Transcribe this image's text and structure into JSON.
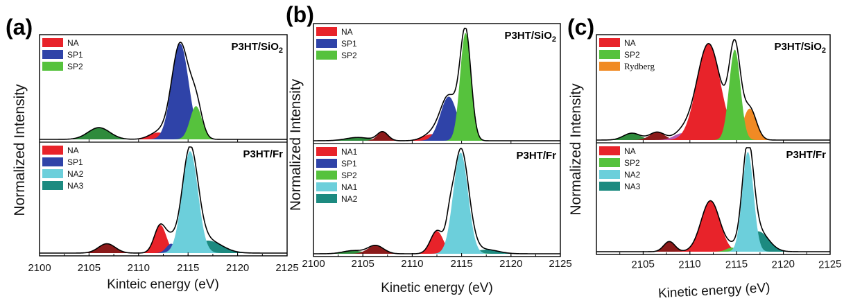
{
  "colors": {
    "NA": "#e8232a",
    "NA1": "#e8232a",
    "SP1": "#2f43a8",
    "SP2": "#56c23d",
    "NA2": "#6ccfdb",
    "NA3": "#1c8a80",
    "NA2_b": "#1c8a80",
    "Rydberg": "#f08a24",
    "darkred": "#8b1a1a",
    "darkgreen": "#2e8b3c",
    "purple": "#b45bb3"
  },
  "chart_data": [
    {
      "panel": "(a)",
      "type": "area",
      "xlabel": "Kinteic energy (eV)",
      "ylabel": "Normalized Intensity",
      "xlim": [
        2100,
        2125
      ],
      "xticks": [
        "2100",
        "2105",
        "2110",
        "2115",
        "2120",
        "2125"
      ],
      "subplots": [
        {
          "sample": "P3HT/SiO",
          "sample_sub": "2",
          "legend": [
            {
              "label": "NA",
              "color_key": "NA"
            },
            {
              "label": "SP1",
              "color_key": "SP1"
            },
            {
              "label": "SP2",
              "color_key": "SP2"
            }
          ],
          "components": [
            {
              "color_key": "darkgreen",
              "center": 2106.0,
              "sigma": 1.1,
              "amp": 0.12
            },
            {
              "color_key": "NA",
              "center": 2112.0,
              "sigma": 0.9,
              "amp": 0.07
            },
            {
              "color_key": "SP1",
              "center": 2114.2,
              "sigma": 0.85,
              "amp": 0.98
            },
            {
              "color_key": "SP2",
              "center": 2115.8,
              "sigma": 0.6,
              "amp": 0.34
            }
          ]
        },
        {
          "sample": "P3HT/Fr",
          "sample_sub": "",
          "legend": [
            {
              "label": "NA",
              "color_key": "NA"
            },
            {
              "label": "SP1",
              "color_key": "SP1"
            },
            {
              "label": "NA2",
              "color_key": "NA2"
            },
            {
              "label": "NA3",
              "color_key": "NA3"
            }
          ],
          "components": [
            {
              "color_key": "darkred",
              "center": 2106.8,
              "sigma": 0.85,
              "amp": 0.09
            },
            {
              "color_key": "NA",
              "center": 2112.2,
              "sigma": 0.6,
              "amp": 0.27
            },
            {
              "color_key": "SP1",
              "center": 2113.3,
              "sigma": 0.5,
              "amp": 0.09
            },
            {
              "color_key": "NA3",
              "center": 2117.0,
              "sigma": 1.4,
              "amp": 0.12
            },
            {
              "color_key": "NA2",
              "center": 2115.2,
              "sigma": 0.8,
              "amp": 0.98
            }
          ]
        }
      ]
    },
    {
      "panel": "(b)",
      "type": "area",
      "xlabel": "Kinetic energy (eV)",
      "ylabel": "Normalized Intensity",
      "xlim": [
        2100,
        2125
      ],
      "xticks": [
        "2100",
        "2105",
        "2110",
        "2115",
        "2120",
        "2125"
      ],
      "subplots": [
        {
          "sample": "P3HT/SiO",
          "sample_sub": "2",
          "legend": [
            {
              "label": "NA",
              "color_key": "NA"
            },
            {
              "label": "SP1",
              "color_key": "SP1"
            },
            {
              "label": "SP2",
              "color_key": "SP2"
            }
          ],
          "components": [
            {
              "color_key": "darkgreen",
              "center": 2104.5,
              "sigma": 1.2,
              "amp": 0.03
            },
            {
              "color_key": "darkred",
              "center": 2107.0,
              "sigma": 0.55,
              "amp": 0.08
            },
            {
              "color_key": "NA",
              "center": 2112.0,
              "sigma": 0.9,
              "amp": 0.06
            },
            {
              "color_key": "SP1",
              "center": 2113.7,
              "sigma": 0.85,
              "amp": 0.4
            },
            {
              "color_key": "SP2",
              "center": 2115.4,
              "sigma": 0.55,
              "amp": 0.98
            }
          ]
        },
        {
          "sample": "P3HT/Fr",
          "sample_sub": "",
          "legend": [
            {
              "label": "NA1",
              "color_key": "NA1"
            },
            {
              "label": "SP1",
              "color_key": "SP1"
            },
            {
              "label": "SP2",
              "color_key": "SP2"
            },
            {
              "label": "NA1",
              "color_key": "NA2"
            },
            {
              "label": "NA2",
              "color_key": "NA2_b"
            }
          ],
          "components": [
            {
              "color_key": "darkgreen",
              "center": 2104.0,
              "sigma": 1.0,
              "amp": 0.03
            },
            {
              "color_key": "darkred",
              "center": 2106.3,
              "sigma": 0.8,
              "amp": 0.08
            },
            {
              "color_key": "NA",
              "center": 2112.5,
              "sigma": 0.65,
              "amp": 0.22
            },
            {
              "color_key": "SP1",
              "center": 2113.8,
              "sigma": 0.35,
              "amp": 0.17
            },
            {
              "color_key": "NA2_b",
              "center": 2117.5,
              "sigma": 1.2,
              "amp": 0.04
            },
            {
              "color_key": "SP2",
              "center": 2115.8,
              "sigma": 0.7,
              "amp": 0.08
            },
            {
              "color_key": "NA2",
              "center": 2114.9,
              "sigma": 0.75,
              "amp": 0.98
            }
          ]
        }
      ]
    },
    {
      "panel": "(c)",
      "type": "area",
      "xlabel": "Kinetic energy (eV)",
      "ylabel": "Normalized Intensity",
      "xlim": [
        2100,
        2125
      ],
      "xticks": [
        "2105",
        "2110",
        "2115",
        "2120",
        "2125"
      ],
      "subplots": [
        {
          "sample": "P3HT/SiO",
          "sample_sub": "2",
          "legend": [
            {
              "label": "NA",
              "color_key": "NA"
            },
            {
              "label": "SP2",
              "color_key": "SP2"
            },
            {
              "label": "Rydberg",
              "color_key": "Rydberg",
              "serif": true
            }
          ],
          "components": [
            {
              "color_key": "darkgreen",
              "center": 2103.8,
              "sigma": 0.9,
              "amp": 0.07
            },
            {
              "color_key": "darkred",
              "center": 2106.5,
              "sigma": 0.8,
              "amp": 0.08
            },
            {
              "color_key": "purple",
              "center": 2109.2,
              "sigma": 0.9,
              "amp": 0.07
            },
            {
              "color_key": "NA",
              "center": 2112.0,
              "sigma": 1.25,
              "amp": 0.98
            },
            {
              "color_key": "Rydberg",
              "center": 2116.4,
              "sigma": 0.7,
              "amp": 0.32
            },
            {
              "color_key": "SP2",
              "center": 2114.8,
              "sigma": 0.6,
              "amp": 0.92
            }
          ]
        },
        {
          "sample": "P3HT/Fr",
          "sample_sub": "",
          "legend": [
            {
              "label": "NA",
              "color_key": "NA"
            },
            {
              "label": "SP2",
              "color_key": "SP2"
            },
            {
              "label": "NA2",
              "color_key": "NA2"
            },
            {
              "label": "NA3",
              "color_key": "NA3"
            }
          ],
          "components": [
            {
              "color_key": "darkred",
              "center": 2107.8,
              "sigma": 0.6,
              "amp": 0.1
            },
            {
              "color_key": "NA",
              "center": 2112.2,
              "sigma": 1.0,
              "amp": 0.5
            },
            {
              "color_key": "SP2",
              "center": 2114.5,
              "sigma": 0.6,
              "amp": 0.04
            },
            {
              "color_key": "NA3",
              "center": 2117.3,
              "sigma": 1.1,
              "amp": 0.2
            },
            {
              "color_key": "NA2",
              "center": 2116.2,
              "sigma": 0.6,
              "amp": 0.98
            }
          ]
        }
      ]
    }
  ]
}
